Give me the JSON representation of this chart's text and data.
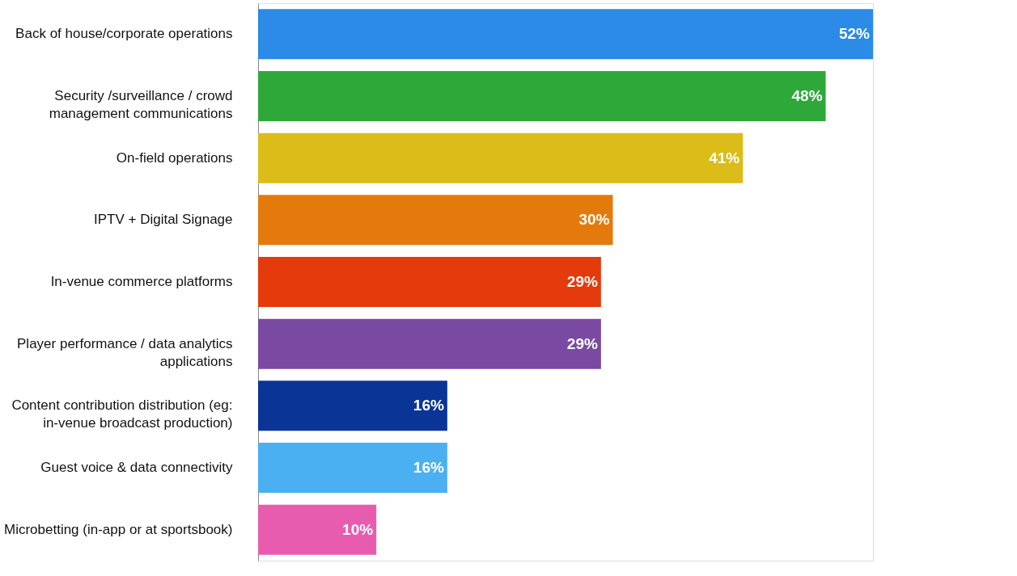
{
  "chart_data": {
    "type": "bar",
    "orientation": "horizontal",
    "categories": [
      "Back of house/corporate operations",
      "Security /surveillance / crowd management communications",
      "On-field operations",
      "IPTV + Digital Signage",
      "In-venue commerce platforms",
      "Player performance / data analytics applications",
      "Content contribution distribution (eg: in-venue broadcast production)",
      "Guest voice & data connectivity",
      "Microbetting (in-app or at sportsbook)"
    ],
    "values": [
      52,
      48,
      41,
      30,
      29,
      29,
      16,
      16,
      10
    ],
    "value_labels": [
      "52%",
      "48%",
      "41%",
      "30%",
      "29%",
      "29%",
      "16%",
      "16%",
      "10%"
    ],
    "colors": [
      "#2b8be6",
      "#2fa83a",
      "#dcbc18",
      "#e57a0c",
      "#e53a0c",
      "#7a4aa3",
      "#0a3596",
      "#4ab0f2",
      "#e85cb0"
    ]
  }
}
